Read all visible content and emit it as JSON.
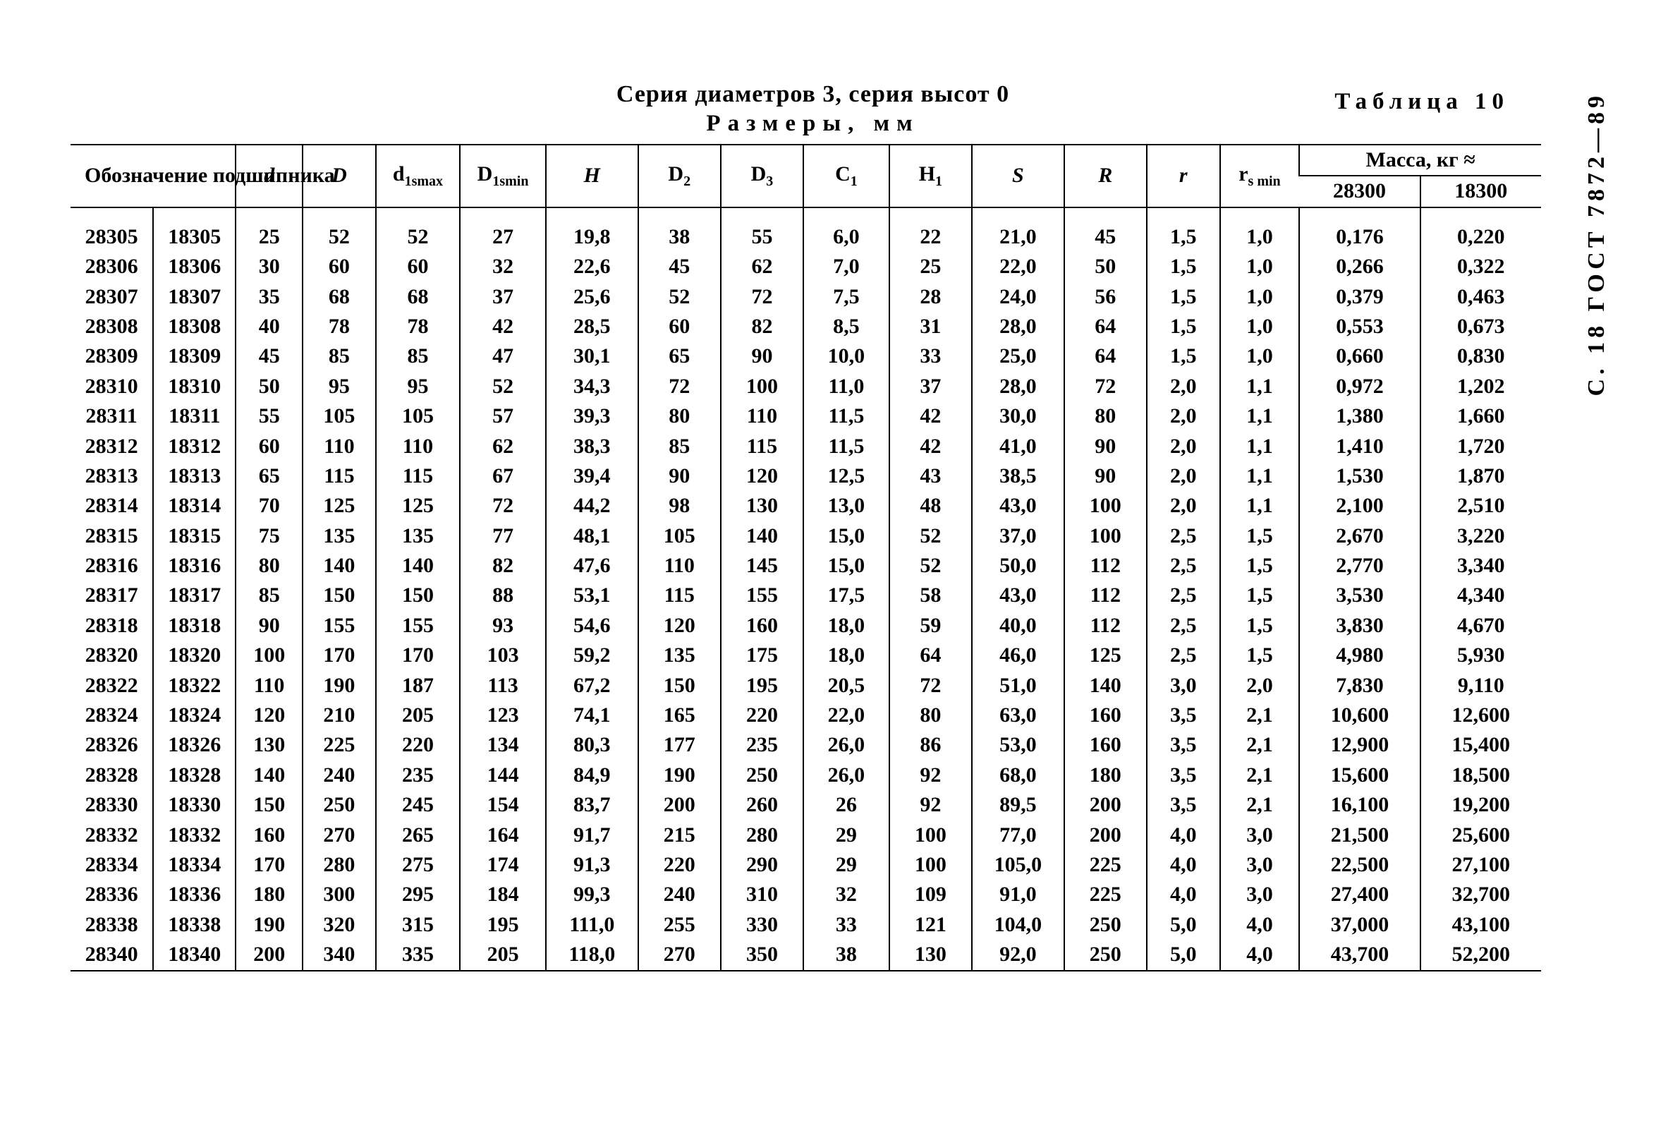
{
  "gost": "С. 18 ГОСТ 7872—89",
  "table_number": "Таблица 10",
  "title_line1": "Серия диаметров 3, серия высот 0",
  "title_line2": "Размеры, мм",
  "header": {
    "oboznachenie": "Обозначение подшипника",
    "d": "d",
    "D": "D",
    "d1smax_html": "d<span class=\"sub\">1smax</span>",
    "D1smin_html": "D<span class=\"sub\">1smin</span>",
    "H": "H",
    "D2_html": "D<span class=\"sub\">2</span>",
    "D3_html": "D<span class=\"sub\">3</span>",
    "C1_html": "C<span class=\"sub\">1</span>",
    "H1_html": "H<span class=\"sub\">1</span>",
    "S": "S",
    "R": "R",
    "r_html": "<i>r</i>",
    "rs_min_html": "r<span class=\"sub\">s min</span>",
    "mass_group": "Масса, кг ≈",
    "mass_28300": "28300",
    "mass_18300": "18300"
  },
  "rows": [
    [
      "28305",
      "18305",
      "25",
      "52",
      "52",
      "27",
      "19,8",
      "38",
      "55",
      "6,0",
      "22",
      "21,0",
      "45",
      "1,5",
      "1,0",
      "0,176",
      "0,220"
    ],
    [
      "28306",
      "18306",
      "30",
      "60",
      "60",
      "32",
      "22,6",
      "45",
      "62",
      "7,0",
      "25",
      "22,0",
      "50",
      "1,5",
      "1,0",
      "0,266",
      "0,322"
    ],
    [
      "28307",
      "18307",
      "35",
      "68",
      "68",
      "37",
      "25,6",
      "52",
      "72",
      "7,5",
      "28",
      "24,0",
      "56",
      "1,5",
      "1,0",
      "0,379",
      "0,463"
    ],
    [
      "28308",
      "18308",
      "40",
      "78",
      "78",
      "42",
      "28,5",
      "60",
      "82",
      "8,5",
      "31",
      "28,0",
      "64",
      "1,5",
      "1,0",
      "0,553",
      "0,673"
    ],
    [
      "28309",
      "18309",
      "45",
      "85",
      "85",
      "47",
      "30,1",
      "65",
      "90",
      "10,0",
      "33",
      "25,0",
      "64",
      "1,5",
      "1,0",
      "0,660",
      "0,830"
    ],
    [
      "28310",
      "18310",
      "50",
      "95",
      "95",
      "52",
      "34,3",
      "72",
      "100",
      "11,0",
      "37",
      "28,0",
      "72",
      "2,0",
      "1,1",
      "0,972",
      "1,202"
    ],
    [
      "28311",
      "18311",
      "55",
      "105",
      "105",
      "57",
      "39,3",
      "80",
      "110",
      "11,5",
      "42",
      "30,0",
      "80",
      "2,0",
      "1,1",
      "1,380",
      "1,660"
    ],
    [
      "28312",
      "18312",
      "60",
      "110",
      "110",
      "62",
      "38,3",
      "85",
      "115",
      "11,5",
      "42",
      "41,0",
      "90",
      "2,0",
      "1,1",
      "1,410",
      "1,720"
    ],
    [
      "28313",
      "18313",
      "65",
      "115",
      "115",
      "67",
      "39,4",
      "90",
      "120",
      "12,5",
      "43",
      "38,5",
      "90",
      "2,0",
      "1,1",
      "1,530",
      "1,870"
    ],
    [
      "28314",
      "18314",
      "70",
      "125",
      "125",
      "72",
      "44,2",
      "98",
      "130",
      "13,0",
      "48",
      "43,0",
      "100",
      "2,0",
      "1,1",
      "2,100",
      "2,510"
    ],
    [
      "28315",
      "18315",
      "75",
      "135",
      "135",
      "77",
      "48,1",
      "105",
      "140",
      "15,0",
      "52",
      "37,0",
      "100",
      "2,5",
      "1,5",
      "2,670",
      "3,220"
    ],
    [
      "28316",
      "18316",
      "80",
      "140",
      "140",
      "82",
      "47,6",
      "110",
      "145",
      "15,0",
      "52",
      "50,0",
      "112",
      "2,5",
      "1,5",
      "2,770",
      "3,340"
    ],
    [
      "28317",
      "18317",
      "85",
      "150",
      "150",
      "88",
      "53,1",
      "115",
      "155",
      "17,5",
      "58",
      "43,0",
      "112",
      "2,5",
      "1,5",
      "3,530",
      "4,340"
    ],
    [
      "28318",
      "18318",
      "90",
      "155",
      "155",
      "93",
      "54,6",
      "120",
      "160",
      "18,0",
      "59",
      "40,0",
      "112",
      "2,5",
      "1,5",
      "3,830",
      "4,670"
    ],
    [
      "28320",
      "18320",
      "100",
      "170",
      "170",
      "103",
      "59,2",
      "135",
      "175",
      "18,0",
      "64",
      "46,0",
      "125",
      "2,5",
      "1,5",
      "4,980",
      "5,930"
    ],
    [
      "28322",
      "18322",
      "110",
      "190",
      "187",
      "113",
      "67,2",
      "150",
      "195",
      "20,5",
      "72",
      "51,0",
      "140",
      "3,0",
      "2,0",
      "7,830",
      "9,110"
    ],
    [
      "28324",
      "18324",
      "120",
      "210",
      "205",
      "123",
      "74,1",
      "165",
      "220",
      "22,0",
      "80",
      "63,0",
      "160",
      "3,5",
      "2,1",
      "10,600",
      "12,600"
    ],
    [
      "28326",
      "18326",
      "130",
      "225",
      "220",
      "134",
      "80,3",
      "177",
      "235",
      "26,0",
      "86",
      "53,0",
      "160",
      "3,5",
      "2,1",
      "12,900",
      "15,400"
    ],
    [
      "28328",
      "18328",
      "140",
      "240",
      "235",
      "144",
      "84,9",
      "190",
      "250",
      "26,0",
      "92",
      "68,0",
      "180",
      "3,5",
      "2,1",
      "15,600",
      "18,500"
    ],
    [
      "28330",
      "18330",
      "150",
      "250",
      "245",
      "154",
      "83,7",
      "200",
      "260",
      "26",
      "92",
      "89,5",
      "200",
      "3,5",
      "2,1",
      "16,100",
      "19,200"
    ],
    [
      "28332",
      "18332",
      "160",
      "270",
      "265",
      "164",
      "91,7",
      "215",
      "280",
      "29",
      "100",
      "77,0",
      "200",
      "4,0",
      "3,0",
      "21,500",
      "25,600"
    ],
    [
      "28334",
      "18334",
      "170",
      "280",
      "275",
      "174",
      "91,3",
      "220",
      "290",
      "29",
      "100",
      "105,0",
      "225",
      "4,0",
      "3,0",
      "22,500",
      "27,100"
    ],
    [
      "28336",
      "18336",
      "180",
      "300",
      "295",
      "184",
      "99,3",
      "240",
      "310",
      "32",
      "109",
      "91,0",
      "225",
      "4,0",
      "3,0",
      "27,400",
      "32,700"
    ],
    [
      "28338",
      "18338",
      "190",
      "320",
      "315",
      "195",
      "111,0",
      "255",
      "330",
      "33",
      "121",
      "104,0",
      "250",
      "5,0",
      "4,0",
      "37,000",
      "43,100"
    ],
    [
      "28340",
      "18340",
      "200",
      "340",
      "335",
      "205",
      "118,0",
      "270",
      "350",
      "38",
      "130",
      "92,0",
      "250",
      "5,0",
      "4,0",
      "43,700",
      "52,200"
    ]
  ]
}
